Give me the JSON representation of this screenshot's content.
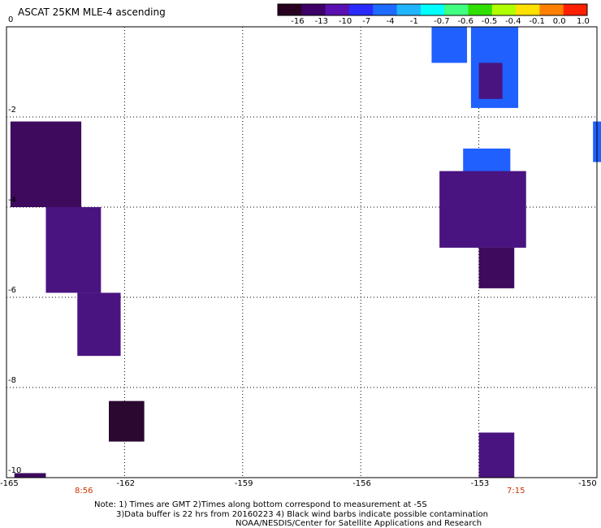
{
  "title": "ASCAT 25KM MLE-4 ascending",
  "colorbar": {
    "colors": [
      "#280020",
      "#3c0068",
      "#5a10b0",
      "#2a2aff",
      "#1e6bff",
      "#20b4ff",
      "#00ffff",
      "#40ff80",
      "#30e000",
      "#b0ff00",
      "#ffe000",
      "#ff8000",
      "#ff2000"
    ],
    "labels": [
      "-16",
      "-13",
      "-10",
      "-7",
      "-4",
      "-1",
      "-0.7",
      "-0.6",
      "-0.5",
      "-0.4",
      "-0.1",
      "0.0",
      "1.0"
    ]
  },
  "axes": {
    "x_ticks": [
      "-165",
      "-162",
      "-159",
      "-156",
      "-153",
      "-150"
    ],
    "y_ticks": [
      "0",
      "-2",
      "-4",
      "-6",
      "-8",
      "-10"
    ]
  },
  "time_labels": [
    "8:56",
    "7:15"
  ],
  "notes": [
    "Note: 1) Times are GMT 2)Times along bottom correspond to measurement at -5S",
    "3)Data buffer is 22 hrs from 20160223 4) Black wind barbs indicate possible contamination",
    "NOAA/NESDIS/Center for Satellite Applications and Research"
  ],
  "swaths": [
    {
      "name": "swath-west-1",
      "lon": [
        -164.9,
        -163.1
      ],
      "lat": [
        -2.1,
        -4.0
      ],
      "color": "#3d0a5e"
    },
    {
      "name": "swath-west-2",
      "lon": [
        -164.0,
        -162.6
      ],
      "lat": [
        -4.0,
        -5.9
      ],
      "color": "#4a1480"
    },
    {
      "name": "swath-west-3",
      "lon": [
        -163.2,
        -162.1
      ],
      "lat": [
        -5.9,
        -7.3
      ],
      "color": "#4a1480"
    },
    {
      "name": "swath-west-4",
      "lon": [
        -162.4,
        -161.5
      ],
      "lat": [
        -8.3,
        -9.2
      ],
      "color": "#2a0830"
    },
    {
      "name": "swath-west-5",
      "lon": [
        -164.8,
        -164.0
      ],
      "lat": [
        -9.9,
        -10.0
      ],
      "color": "#3d0a5e"
    },
    {
      "name": "swath-east-blue-1",
      "lon": [
        -154.2,
        -153.3
      ],
      "lat": [
        0.0,
        -0.8
      ],
      "color": "#2060ff"
    },
    {
      "name": "swath-east-blue-2",
      "lon": [
        -153.2,
        -152.0
      ],
      "lat": [
        0.0,
        -1.8
      ],
      "color": "#2060ff"
    },
    {
      "name": "swath-east-purple-1",
      "lon": [
        -153.0,
        -152.4
      ],
      "lat": [
        -0.8,
        -1.6
      ],
      "color": "#4a1480"
    },
    {
      "name": "swath-east-blue-3",
      "lon": [
        -153.4,
        -152.2
      ],
      "lat": [
        -2.7,
        -3.5
      ],
      "color": "#2060ff"
    },
    {
      "name": "swath-east-purple-2",
      "lon": [
        -154.0,
        -151.8
      ],
      "lat": [
        -3.2,
        -4.9
      ],
      "color": "#4a1480"
    },
    {
      "name": "swath-east-purple-3",
      "lon": [
        -153.0,
        -152.1
      ],
      "lat": [
        -4.9,
        -5.8
      ],
      "color": "#3d0a5e"
    },
    {
      "name": "swath-east-blue-4",
      "lon": [
        -150.1,
        -149.7
      ],
      "lat": [
        -2.1,
        -3.0
      ],
      "color": "#2060ff"
    },
    {
      "name": "swath-east-purple-4",
      "lon": [
        -153.0,
        -152.1
      ],
      "lat": [
        -9.0,
        -10.0
      ],
      "color": "#4a1480"
    }
  ]
}
